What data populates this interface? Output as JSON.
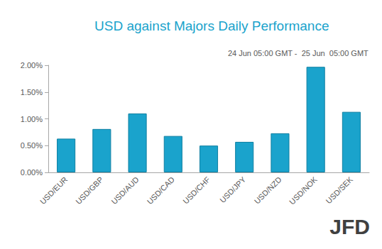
{
  "chart_data": {
    "type": "bar",
    "title": "USD against Majors Daily Performance",
    "subtitle": "24 Jun 05:00 GMT -  25 Jun  05:00 GMT",
    "watermark": "JFD",
    "categories": [
      "USD/EUR",
      "USD/GBP",
      "USD/AUD",
      "USD/CAD",
      "USD/CHF",
      "USD/JPY",
      "USD/NZD",
      "USD/NOK",
      "USD/SEK"
    ],
    "values": [
      0.63,
      0.81,
      1.1,
      0.68,
      0.5,
      0.57,
      0.73,
      1.97,
      1.13
    ],
    "color": "#1aa3cc",
    "ylim": [
      0,
      2
    ],
    "yticks": [
      {
        "value": 0,
        "label": "0.00%"
      },
      {
        "value": 0.5,
        "label": "0.50%"
      },
      {
        "value": 1,
        "label": "1.00%"
      },
      {
        "value": 1.5,
        "label": "1.50%"
      },
      {
        "value": 2,
        "label": "2.00%"
      }
    ],
    "grid": false
  }
}
